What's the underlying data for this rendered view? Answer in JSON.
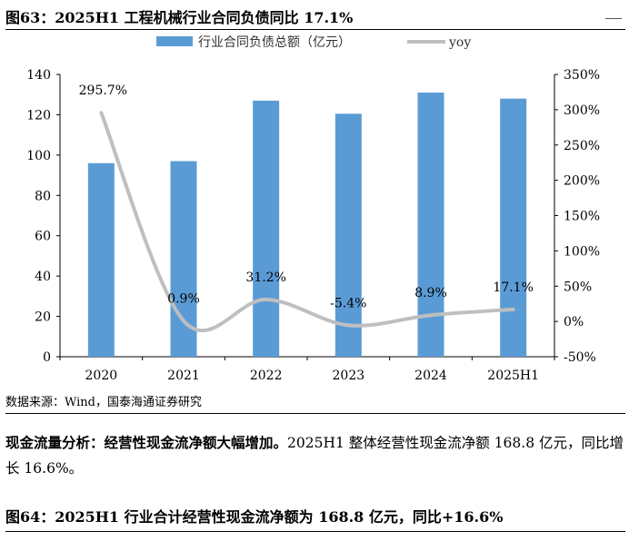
{
  "figure_title": "图63：2025H1 工程机械行业合同负债同比 17.1%",
  "source": "数据来源：Wind，国泰海通证券研究",
  "paragraph": {
    "lead": "现金流量分析：经营性现金流净额大幅增加。",
    "body": "2025H1 整体经营性现金流净额 168.8 亿元，同比增长 16.6%。"
  },
  "next_figure_title": "图64：2025H1 行业合计经营性现金流净额为 168.8 亿元，同比+16.6%",
  "chart_data": {
    "type": "bar",
    "categories": [
      "2020",
      "2021",
      "2022",
      "2023",
      "2024",
      "2025H1"
    ],
    "series": [
      {
        "name": "行业合同负债总额（亿元）",
        "type": "bar",
        "axis": "left",
        "color": "#5B9BD5",
        "values": [
          96,
          97,
          127,
          120.5,
          131,
          128
        ]
      },
      {
        "name": "yoy",
        "type": "line",
        "axis": "right",
        "color": "#BFBFBF",
        "values": [
          295.7,
          0.9,
          31.2,
          -5.4,
          8.9,
          17.1
        ],
        "labels": [
          "295.7%",
          "0.9%",
          "31.2%",
          "-5.4%",
          "8.9%",
          "17.1%"
        ]
      }
    ],
    "y_left": {
      "min": 0,
      "max": 140,
      "ticks": [
        0,
        20,
        40,
        60,
        80,
        100,
        120,
        140
      ]
    },
    "y_right": {
      "min": -50,
      "max": 350,
      "ticks": [
        "-50%",
        "0%",
        "50%",
        "100%",
        "150%",
        "200%",
        "250%",
        "300%",
        "350%"
      ]
    },
    "legend_position": "top",
    "grid": false
  }
}
